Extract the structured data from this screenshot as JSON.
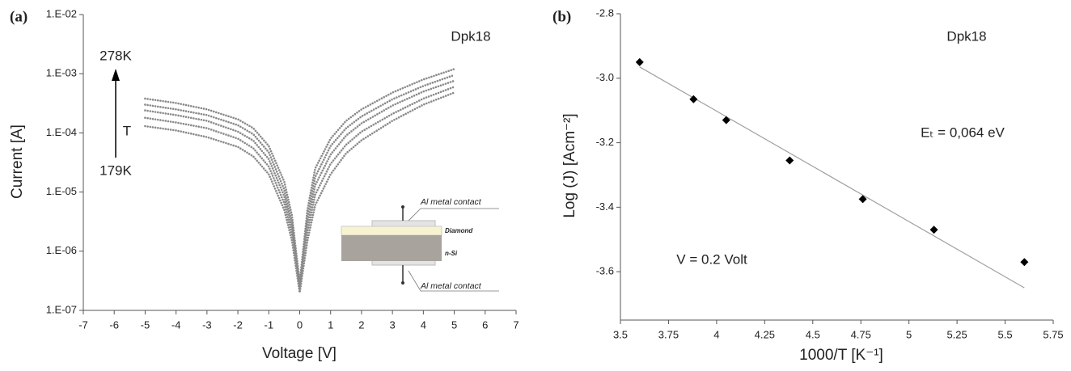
{
  "chart_data": [
    {
      "type": "scatter",
      "label": "(a)",
      "log_y": true,
      "xlabel": "Voltage [V]",
      "ylabel": "Current [A]",
      "xlim": [
        -7,
        7
      ],
      "xticks": [
        -7,
        -6,
        -5,
        -4,
        -3,
        -2,
        -1,
        0,
        1,
        2,
        3,
        4,
        5,
        6,
        7
      ],
      "ylim": [
        1e-07,
        0.01
      ],
      "yticks": [
        {
          "value": 1e-07,
          "label": "1.E-07"
        },
        {
          "value": 1e-06,
          "label": "1.E-06"
        },
        {
          "value": 1e-05,
          "label": "1.E-05"
        },
        {
          "value": 0.0001,
          "label": "1.E-04"
        },
        {
          "value": 0.001,
          "label": "1.E-03"
        },
        {
          "value": 0.01,
          "label": "1.E-02"
        }
      ],
      "x": [
        -5,
        -4,
        -3,
        -2,
        -1.5,
        -1,
        -0.5,
        -0.25,
        0,
        0.25,
        0.5,
        1,
        1.5,
        2,
        3,
        4,
        5
      ],
      "series": [
        {
          "color": "#8a8a8a",
          "values": [
            0.00038,
            0.00032,
            0.00025,
            0.00017,
            0.00012,
            6e-05,
            1.5e-05,
            4e-06,
            3e-07,
            5e-06,
            2.5e-05,
            8e-05,
            0.00016,
            0.00025,
            0.00048,
            0.0008,
            0.0012
          ]
        },
        {
          "color": "#8a8a8a",
          "values": [
            0.0003,
            0.00025,
            0.0002,
            0.000135,
            9.5e-05,
            4.7e-05,
            1.1e-05,
            3e-06,
            2.5e-07,
            3.8e-06,
            1.8e-05,
            6e-05,
            0.00012,
            0.00019,
            0.00037,
            0.00062,
            0.00095
          ]
        },
        {
          "color": "#8a8a8a",
          "values": [
            0.00024,
            0.0002,
            0.00016,
            0.000105,
            7.4e-05,
            3.6e-05,
            8.5e-06,
            2.4e-06,
            2.3e-07,
            2.8e-06,
            1.3e-05,
            4.3e-05,
            9e-05,
            0.000145,
            0.00029,
            0.0005,
            0.00076
          ]
        },
        {
          "color": "#8a8a8a",
          "values": [
            0.00018,
            0.00015,
            0.00012,
            8e-05,
            5.5e-05,
            2.7e-05,
            6.5e-06,
            1.9e-06,
            2.1e-07,
            2.1e-06,
            9e-06,
            3e-05,
            6.3e-05,
            0.000105,
            0.00021,
            0.00038,
            0.0006
          ]
        },
        {
          "color": "#8a8a8a",
          "values": [
            0.00013,
            0.00011,
            8.5e-05,
            5.8e-05,
            4e-05,
            2e-05,
            5e-06,
            1.5e-06,
            2e-07,
            1.5e-06,
            6e-06,
            2e-05,
            4.5e-05,
            7.5e-05,
            0.00016,
            0.0003,
            0.00048
          ]
        }
      ],
      "annotations": [
        "Dpk18",
        "278K",
        "T",
        "179K",
        "Al  metal contact",
        "Diamond",
        "n-Si",
        "Al metal contact"
      ]
    },
    {
      "type": "scatter",
      "label": "(b)",
      "xlabel": "1000/T [K⁻¹]",
      "ylabel": "Log (J) [Acm⁻²]",
      "xlim": [
        3.5,
        5.75
      ],
      "xticks": [
        3.5,
        3.75,
        4,
        4.25,
        4.5,
        4.75,
        5,
        5.25,
        5.5,
        5.75
      ],
      "ylim": [
        -3.75,
        -2.8
      ],
      "yticks": [
        {
          "value": -3.6,
          "label": "-3.6"
        },
        {
          "value": -3.4,
          "label": "-3.4"
        },
        {
          "value": -3.2,
          "label": "-3.2"
        },
        {
          "value": -3,
          "label": "-3.0"
        },
        {
          "value": -2.8,
          "label": "-2.8"
        }
      ],
      "x": [
        3.6,
        3.88,
        4.05,
        4.38,
        4.76,
        5.13,
        5.6
      ],
      "series": [
        {
          "color": "#000000",
          "values": [
            -2.95,
            -3.065,
            -3.13,
            -3.255,
            -3.375,
            -3.47,
            -3.57
          ]
        }
      ],
      "fit": {
        "color": "#a0a0a0",
        "x": [
          3.6,
          5.6
        ],
        "y": [
          -2.965,
          -3.65
        ]
      },
      "annotations": [
        "Dpk18",
        "Eₜ = 0,064 eV",
        "V = 0.2 Volt"
      ]
    }
  ]
}
